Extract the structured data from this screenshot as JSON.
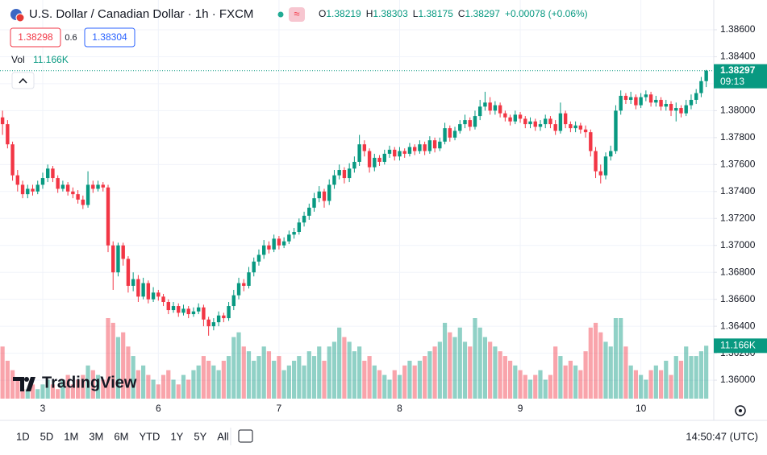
{
  "header": {
    "symbol": "U.S. Dollar / Canadian Dollar · 1h · FXCM",
    "keys": [
      "O",
      "H",
      "L",
      "C"
    ],
    "change": "+0.00078 (+0.06%)",
    "sell": "1.38298",
    "spread": "0.6",
    "buy": "1.38304",
    "volume_title": "Vol",
    "logo": "TradingView"
  },
  "toolbar": {
    "ranges": [
      "1D",
      "5D",
      "1M",
      "3M",
      "6M",
      "YTD",
      "1Y",
      "5Y",
      "All"
    ],
    "clock": "14:50:47 (UTC)"
  },
  "chart_data": {
    "type": "candlestick",
    "up_color": "#089981",
    "down_color": "#f23645",
    "grid": true,
    "xlim": [
      -0.5,
      141.5
    ],
    "xticks": [
      {
        "value": 8,
        "label": "3"
      },
      {
        "value": 31,
        "label": "6"
      },
      {
        "value": 55,
        "label": "7"
      },
      {
        "value": 79,
        "label": "8"
      },
      {
        "value": 103,
        "label": "9"
      },
      {
        "value": 127,
        "label": "10"
      }
    ],
    "ylim": [
      1.35863,
      1.38821
    ],
    "yticks": [
      {
        "value": 1.36,
        "label": "1.36000"
      },
      {
        "value": 1.362,
        "label": "1.36200"
      },
      {
        "value": 1.364,
        "label": "1.36400"
      },
      {
        "value": 1.366,
        "label": "1.36600"
      },
      {
        "value": 1.368,
        "label": "1.36800"
      },
      {
        "value": 1.37,
        "label": "1.37000"
      },
      {
        "value": 1.372,
        "label": "1.37200"
      },
      {
        "value": 1.374,
        "label": "1.37400"
      },
      {
        "value": 1.376,
        "label": "1.37600"
      },
      {
        "value": 1.378,
        "label": "1.37800"
      },
      {
        "value": 1.38,
        "label": "1.38000"
      },
      {
        "value": 1.382,
        "label": "1.38200"
      },
      {
        "value": 1.384,
        "label": "1.38400"
      },
      {
        "value": 1.386,
        "label": "1.38600"
      }
    ],
    "open": [
      1.3795,
      1.379,
      1.3775,
      1.3752,
      1.3745,
      1.3738,
      1.3742,
      1.374,
      1.3745,
      1.375,
      1.3757,
      1.375,
      1.3742,
      1.3745,
      1.374,
      1.3738,
      1.3734,
      1.373,
      1.3745,
      1.3742,
      1.3745,
      1.3743,
      1.37,
      1.368,
      1.37,
      1.369,
      1.367,
      1.3675,
      1.3662,
      1.3672,
      1.366,
      1.3665,
      1.3662,
      1.3658,
      1.3652,
      1.3655,
      1.365,
      1.3653,
      1.3649,
      1.3651,
      1.3654,
      1.3645,
      1.364,
      1.3643,
      1.3648,
      1.3646,
      1.3655,
      1.3663,
      1.3672,
      1.367,
      1.368,
      1.3688,
      1.3693,
      1.37,
      1.3697,
      1.3705,
      1.37,
      1.3703,
      1.3708,
      1.371,
      1.3717,
      1.3722,
      1.3728,
      1.3735,
      1.374,
      1.3733,
      1.3745,
      1.3752,
      1.3756,
      1.375,
      1.3757,
      1.3762,
      1.3775,
      1.377,
      1.3758,
      1.3765,
      1.3762,
      1.3768,
      1.3771,
      1.3766,
      1.377,
      1.3768,
      1.3773,
      1.377,
      1.3775,
      1.377,
      1.3778,
      1.3772,
      1.3777,
      1.3787,
      1.378,
      1.3785,
      1.379,
      1.3793,
      1.3788,
      1.3796,
      1.3803,
      1.3806,
      1.38,
      1.3804,
      1.3798,
      1.3795,
      1.3792,
      1.3797,
      1.3794,
      1.379,
      1.3792,
      1.3788,
      1.379,
      1.3794,
      1.379,
      1.3785,
      1.3798,
      1.379,
      1.3787,
      1.3789,
      1.3786,
      1.3784,
      1.377,
      1.3755,
      1.3752,
      1.3766,
      1.377,
      1.38,
      1.3811,
      1.3808,
      1.381,
      1.3804,
      1.381,
      1.3812,
      1.3806,
      1.3808,
      1.3803,
      1.3805,
      1.38,
      1.3802,
      1.3798,
      1.3804,
      1.3808,
      1.3813,
      1.38219
    ],
    "high": [
      1.38,
      1.3793,
      1.3777,
      1.3756,
      1.3748,
      1.3745,
      1.3745,
      1.3748,
      1.3754,
      1.376,
      1.3759,
      1.3752,
      1.3748,
      1.3747,
      1.3743,
      1.3741,
      1.3737,
      1.3755,
      1.3748,
      1.3748,
      1.3747,
      1.3745,
      1.3703,
      1.3702,
      1.3702,
      1.3692,
      1.368,
      1.3678,
      1.3676,
      1.3674,
      1.3669,
      1.3667,
      1.3664,
      1.366,
      1.3658,
      1.3657,
      1.3656,
      1.3655,
      1.3654,
      1.3657,
      1.3656,
      1.3647,
      1.3646,
      1.3651,
      1.365,
      1.3658,
      1.3667,
      1.3676,
      1.3675,
      1.3684,
      1.3691,
      1.3697,
      1.3704,
      1.3703,
      1.3708,
      1.3707,
      1.3706,
      1.3711,
      1.3713,
      1.372,
      1.3725,
      1.3731,
      1.3739,
      1.3744,
      1.3742,
      1.3749,
      1.3756,
      1.376,
      1.3758,
      1.3761,
      1.3766,
      1.3782,
      1.3778,
      1.3772,
      1.3768,
      1.3767,
      1.3771,
      1.3774,
      1.3773,
      1.3773,
      1.3772,
      1.3776,
      1.3775,
      1.3778,
      1.3777,
      1.3781,
      1.378,
      1.378,
      1.3791,
      1.3789,
      1.3788,
      1.3793,
      1.3797,
      1.3795,
      1.38,
      1.3808,
      1.3814,
      1.381,
      1.3807,
      1.3806,
      1.38,
      1.3797,
      1.38,
      1.3799,
      1.3796,
      1.3795,
      1.3794,
      1.3793,
      1.3797,
      1.3796,
      1.3793,
      1.3806,
      1.38,
      1.3792,
      1.3792,
      1.3791,
      1.3789,
      1.3786,
      1.3773,
      1.376,
      1.3769,
      1.3774,
      1.3804,
      1.3815,
      1.3813,
      1.3814,
      1.3812,
      1.3813,
      1.3815,
      1.3814,
      1.3811,
      1.381,
      1.3808,
      1.3807,
      1.3806,
      1.3804,
      1.3808,
      1.3812,
      1.3816,
      1.3825,
      1.38303
    ],
    "low": [
      1.3782,
      1.3772,
      1.3748,
      1.374,
      1.3735,
      1.3735,
      1.3737,
      1.3738,
      1.3742,
      1.3747,
      1.3747,
      1.3739,
      1.374,
      1.3737,
      1.3735,
      1.3731,
      1.3727,
      1.3728,
      1.3739,
      1.374,
      1.374,
      1.3695,
      1.3667,
      1.3677,
      1.3685,
      1.3665,
      1.3666,
      1.3658,
      1.366,
      1.3657,
      1.3658,
      1.3659,
      1.3655,
      1.3649,
      1.365,
      1.3647,
      1.3648,
      1.3646,
      1.3647,
      1.3649,
      1.364,
      1.3633,
      1.3637,
      1.364,
      1.3643,
      1.3644,
      1.3652,
      1.366,
      1.3666,
      1.3668,
      1.3677,
      1.3685,
      1.369,
      1.3694,
      1.3695,
      1.3697,
      1.3698,
      1.3701,
      1.3705,
      1.3708,
      1.3714,
      1.3719,
      1.3725,
      1.3732,
      1.3728,
      1.373,
      1.3742,
      1.3749,
      1.3746,
      1.3747,
      1.3754,
      1.3759,
      1.3766,
      1.3754,
      1.3755,
      1.3759,
      1.376,
      1.3765,
      1.3763,
      1.3763,
      1.3765,
      1.3766,
      1.3767,
      1.3768,
      1.3767,
      1.3768,
      1.3769,
      1.377,
      1.3775,
      1.3777,
      1.3778,
      1.3783,
      1.3787,
      1.3785,
      1.3786,
      1.3793,
      1.38,
      1.3797,
      1.3797,
      1.3795,
      1.3792,
      1.3789,
      1.379,
      1.3791,
      1.3787,
      1.3787,
      1.3785,
      1.3785,
      1.3787,
      1.3787,
      1.3782,
      1.3783,
      1.3787,
      1.3784,
      1.3784,
      1.3783,
      1.378,
      1.3766,
      1.375,
      1.3746,
      1.3749,
      1.3763,
      1.3768,
      1.3797,
      1.3805,
      1.3805,
      1.3801,
      1.3802,
      1.3807,
      1.3803,
      1.3803,
      1.38,
      1.38,
      1.3796,
      1.3792,
      1.3795,
      1.3796,
      1.3801,
      1.3805,
      1.381,
      1.38175
    ],
    "close": [
      1.379,
      1.3775,
      1.3752,
      1.3745,
      1.3738,
      1.3742,
      1.374,
      1.3745,
      1.375,
      1.3757,
      1.375,
      1.3742,
      1.3745,
      1.374,
      1.3738,
      1.3734,
      1.373,
      1.3745,
      1.3742,
      1.3745,
      1.3743,
      1.37,
      1.368,
      1.37,
      1.369,
      1.367,
      1.3675,
      1.3662,
      1.3672,
      1.366,
      1.3665,
      1.3662,
      1.3658,
      1.3652,
      1.3655,
      1.365,
      1.3653,
      1.3649,
      1.3651,
      1.3654,
      1.3645,
      1.364,
      1.3643,
      1.3648,
      1.3646,
      1.3655,
      1.3663,
      1.3672,
      1.367,
      1.368,
      1.3688,
      1.3693,
      1.37,
      1.3697,
      1.3705,
      1.37,
      1.3703,
      1.3708,
      1.371,
      1.3717,
      1.3722,
      1.3728,
      1.3735,
      1.374,
      1.3733,
      1.3745,
      1.3752,
      1.3756,
      1.375,
      1.3757,
      1.3762,
      1.3775,
      1.377,
      1.3758,
      1.3765,
      1.3762,
      1.3768,
      1.3771,
      1.3766,
      1.377,
      1.3768,
      1.3773,
      1.377,
      1.3775,
      1.377,
      1.3778,
      1.3772,
      1.3777,
      1.3787,
      1.378,
      1.3785,
      1.379,
      1.3793,
      1.3788,
      1.3796,
      1.3803,
      1.3806,
      1.38,
      1.3804,
      1.3798,
      1.3795,
      1.3792,
      1.3797,
      1.3794,
      1.379,
      1.3792,
      1.3788,
      1.379,
      1.3794,
      1.379,
      1.3785,
      1.3798,
      1.379,
      1.3787,
      1.3789,
      1.3786,
      1.3784,
      1.377,
      1.3755,
      1.3752,
      1.3766,
      1.377,
      1.38,
      1.3811,
      1.3808,
      1.381,
      1.3804,
      1.381,
      1.3812,
      1.3806,
      1.3808,
      1.3803,
      1.3805,
      1.38,
      1.3802,
      1.3798,
      1.3804,
      1.3808,
      1.3813,
      1.38219,
      1.38297
    ],
    "volume": [
      11,
      8,
      6,
      4,
      2,
      2,
      3,
      2,
      3,
      4,
      3,
      2,
      4,
      5,
      3,
      4,
      5,
      7,
      6,
      5,
      4,
      17,
      16,
      13,
      14,
      11,
      9,
      6,
      7,
      5,
      4,
      3,
      5,
      6,
      4,
      3,
      5,
      4,
      6,
      7,
      9,
      8,
      7,
      6,
      8,
      9,
      13,
      14,
      11,
      10,
      8,
      9,
      11,
      10,
      8,
      9,
      6,
      7,
      8,
      9,
      7,
      10,
      9,
      11,
      8,
      11,
      12,
      15,
      13,
      12,
      10,
      11,
      8,
      9,
      7,
      6,
      5,
      4,
      6,
      5,
      7,
      8,
      7,
      8,
      9,
      10,
      11,
      12,
      16,
      14,
      13,
      15,
      12,
      11,
      17,
      15,
      13,
      12,
      11,
      10,
      9,
      8,
      7,
      6,
      5,
      4,
      5,
      6,
      4,
      5,
      11,
      9,
      7,
      8,
      7,
      6,
      10,
      15,
      16,
      14,
      12,
      11,
      17,
      17,
      11,
      7,
      6,
      5,
      4,
      6,
      7,
      6,
      8,
      5,
      9,
      8,
      11,
      9,
      9,
      10,
      11.166
    ],
    "volume_value_label": "11.166K",
    "countdown": "09:13"
  }
}
